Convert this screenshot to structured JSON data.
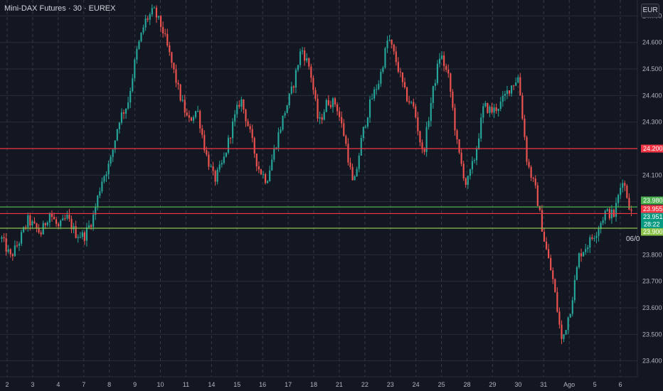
{
  "header": {
    "title": "Mini-DAX Futures · 30 · EUREX",
    "currency": "EUR"
  },
  "colors": {
    "background": "#131722",
    "grid": "#2a2e39",
    "up": "#26a69a",
    "down": "#ef5350",
    "level_red": "#f23645",
    "level_green": "#4caf50",
    "level_lime": "#8bc34a"
  },
  "chart_data": {
    "type": "candlestick",
    "timeframe": "30",
    "y_unit": "index points",
    "ylim": [
      23340,
      24760
    ],
    "y_ticks": [
      23400,
      23500,
      23600,
      23700,
      23800,
      23900,
      24000,
      24100,
      24200,
      24300,
      24400,
      24500,
      24600,
      24700
    ],
    "y_tick_labels": [
      "23.400",
      "23.500",
      "23.600",
      "23.700",
      "23.800",
      "23.900",
      "24.000",
      "24.100",
      "24.200",
      "24.300",
      "24.400",
      "24.500",
      "24.600",
      "24.700"
    ],
    "x_ticks": [
      "2",
      "3",
      "4",
      "7",
      "8",
      "9",
      "10",
      "11",
      "14",
      "15",
      "16",
      "17",
      "18",
      "21",
      "22",
      "23",
      "24",
      "25",
      "28",
      "29",
      "30",
      "31",
      "Ago",
      "5",
      "6"
    ],
    "grid": true,
    "series_close": [
      [
        0,
        23860
      ],
      [
        2,
        23790
      ],
      [
        4,
        23850
      ],
      [
        6,
        23930
      ],
      [
        9,
        23880
      ],
      [
        11,
        23960
      ],
      [
        13,
        23900
      ],
      [
        15,
        23940
      ],
      [
        17,
        23880
      ],
      [
        19,
        23870
      ],
      [
        21,
        23940
      ],
      [
        23,
        24080
      ],
      [
        25,
        24150
      ],
      [
        27,
        24310
      ],
      [
        29,
        24370
      ],
      [
        31,
        24560
      ],
      [
        33,
        24680
      ],
      [
        35,
        24720
      ],
      [
        37,
        24650
      ],
      [
        39,
        24530
      ],
      [
        41,
        24400
      ],
      [
        43,
        24300
      ],
      [
        45,
        24350
      ],
      [
        47,
        24180
      ],
      [
        49,
        24080
      ],
      [
        51,
        24150
      ],
      [
        53,
        24280
      ],
      [
        55,
        24390
      ],
      [
        57,
        24270
      ],
      [
        59,
        24130
      ],
      [
        61,
        24080
      ],
      [
        63,
        24210
      ],
      [
        65,
        24330
      ],
      [
        67,
        24430
      ],
      [
        69,
        24580
      ],
      [
        71,
        24500
      ],
      [
        73,
        24290
      ],
      [
        75,
        24380
      ],
      [
        77,
        24370
      ],
      [
        79,
        24240
      ],
      [
        81,
        24050
      ],
      [
        83,
        24250
      ],
      [
        85,
        24380
      ],
      [
        87,
        24460
      ],
      [
        89,
        24620
      ],
      [
        91,
        24520
      ],
      [
        93,
        24400
      ],
      [
        95,
        24350
      ],
      [
        97,
        24170
      ],
      [
        99,
        24390
      ],
      [
        101,
        24560
      ],
      [
        103,
        24460
      ],
      [
        105,
        24200
      ],
      [
        107,
        24060
      ],
      [
        109,
        24170
      ],
      [
        111,
        24360
      ],
      [
        113,
        24340
      ],
      [
        115,
        24370
      ],
      [
        117,
        24430
      ],
      [
        119,
        24470
      ],
      [
        121,
        24150
      ],
      [
        123,
        24040
      ],
      [
        125,
        23850
      ],
      [
        127,
        23700
      ],
      [
        129,
        23470
      ],
      [
        131,
        23600
      ],
      [
        133,
        23800
      ],
      [
        135,
        23840
      ],
      [
        137,
        23890
      ],
      [
        139,
        23960
      ],
      [
        141,
        23950
      ],
      [
        143,
        24090
      ],
      [
        145,
        23955
      ]
    ],
    "levels": [
      {
        "label": "24.200",
        "value": 24200,
        "color": "#f23645"
      },
      {
        "label": "23.980",
        "value": 23980,
        "color": "#4caf50"
      },
      {
        "label": "23.955",
        "value": 23955,
        "color": "#f23645"
      },
      {
        "label": "23.951",
        "value": 23951,
        "color": "#089981"
      },
      {
        "label": "23.900",
        "value": 23900,
        "color": "#8bc34a"
      }
    ],
    "countdown": "28:22",
    "current_date_label": "06/0"
  }
}
